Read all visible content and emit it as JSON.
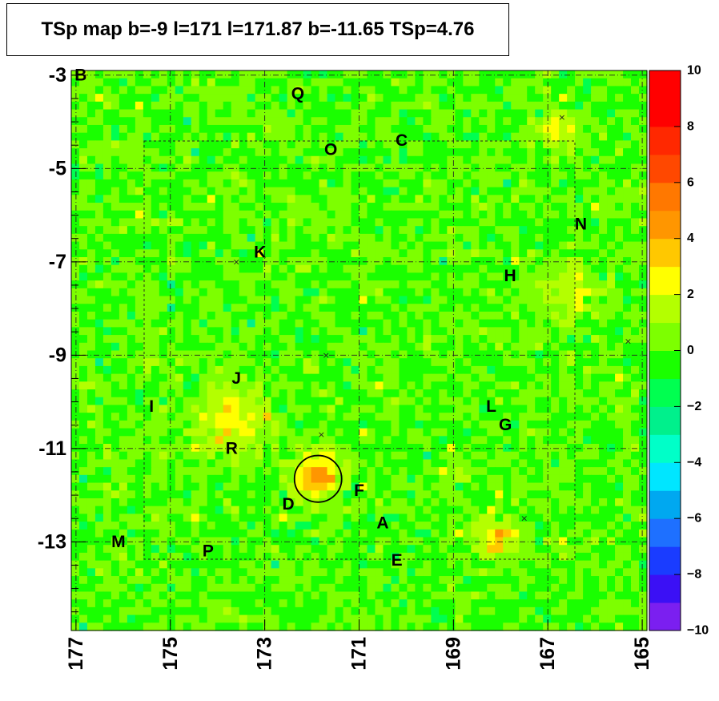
{
  "title": "TSp map b=-9 l=171 l=171.87 b=-11.65 TSp=4.76",
  "chart_data": {
    "type": "heatmap",
    "title": "TSp map b=-9 l=171 l=171.87 b=-11.65 TSp=4.76",
    "xlabel": "",
    "ylabel": "",
    "x_range": [
      177.1,
      164.9
    ],
    "y_range": [
      -14.9,
      -2.9
    ],
    "x_axis_reversed": true,
    "x_ticks": [
      "177",
      "175",
      "173",
      "171",
      "169",
      "167",
      "165"
    ],
    "y_ticks": [
      "-3",
      "-5",
      "-7",
      "-9",
      "-11",
      "-13"
    ],
    "colorbar_range": [
      -10,
      10
    ],
    "colorbar_ticks": [
      "10",
      "8",
      "6",
      "4",
      "2",
      "0",
      "−2",
      "−4",
      "−6",
      "−8",
      "−10"
    ],
    "colorbar_colors": [
      "#7b1ff0",
      "#3b10f5",
      "#1a3cff",
      "#1e70ff",
      "#00a8f0",
      "#00e6ff",
      "#00ffc8",
      "#00f08c",
      "#00ff50",
      "#1aff00",
      "#7dff00",
      "#b4ff00",
      "#ffff00",
      "#ffc800",
      "#ff9600",
      "#ff7800",
      "#ff4800",
      "#ff2800",
      "#ff0000",
      "#ff0000"
    ],
    "background_ts": 0,
    "grid": true,
    "grid_x": [
      177,
      175,
      173,
      171,
      169,
      167,
      165
    ],
    "grid_y": [
      -3,
      -5,
      -7,
      -9,
      -11,
      -13
    ],
    "highlight_circle": {
      "l": 171.87,
      "b": -11.65,
      "radius_deg": 0.5
    },
    "sources": [
      {
        "label": "A",
        "l": 170.5,
        "b": -12.6
      },
      {
        "label": "B",
        "l": 176.9,
        "b": -3.0
      },
      {
        "label": "C",
        "l": 170.1,
        "b": -4.4
      },
      {
        "label": "D",
        "l": 172.5,
        "b": -12.2
      },
      {
        "label": "E",
        "l": 170.2,
        "b": -13.4
      },
      {
        "label": "F",
        "l": 171.0,
        "b": -11.9
      },
      {
        "label": "G",
        "l": 167.9,
        "b": -10.5
      },
      {
        "label": "H",
        "l": 167.8,
        "b": -7.3
      },
      {
        "label": "I",
        "l": 175.4,
        "b": -10.1
      },
      {
        "label": "J",
        "l": 173.6,
        "b": -9.5
      },
      {
        "label": "K",
        "l": 173.1,
        "b": -6.8
      },
      {
        "label": "L",
        "l": 168.2,
        "b": -10.1
      },
      {
        "label": "M",
        "l": 176.1,
        "b": -13.0
      },
      {
        "label": "N",
        "l": 166.3,
        "b": -6.2
      },
      {
        "label": "O",
        "l": 171.6,
        "b": -4.6
      },
      {
        "label": "P",
        "l": 174.2,
        "b": -13.2
      },
      {
        "label": "Q",
        "l": 172.3,
        "b": -3.4
      },
      {
        "label": "R",
        "l": 173.7,
        "b": -11.0
      }
    ],
    "markers_x": [
      {
        "l": 166.7,
        "b": -3.9
      },
      {
        "l": 173.6,
        "b": -7.0
      },
      {
        "l": 171.7,
        "b": -9.0
      },
      {
        "l": 171.8,
        "b": -10.7
      },
      {
        "l": 167.5,
        "b": -12.5
      },
      {
        "l": 165.3,
        "b": -8.7
      }
    ],
    "hotspots": [
      {
        "l": 171.9,
        "b": -11.6,
        "value": 4.5,
        "sigma": 0.35
      },
      {
        "l": 173.7,
        "b": -10.4,
        "value": 3.0,
        "sigma": 0.5
      },
      {
        "l": 168.1,
        "b": -12.9,
        "value": 3.5,
        "sigma": 0.3
      },
      {
        "l": 166.5,
        "b": -7.6,
        "value": 2.5,
        "sigma": 0.4
      },
      {
        "l": 166.8,
        "b": -4.2,
        "value": 2.5,
        "sigma": 0.3
      }
    ]
  }
}
